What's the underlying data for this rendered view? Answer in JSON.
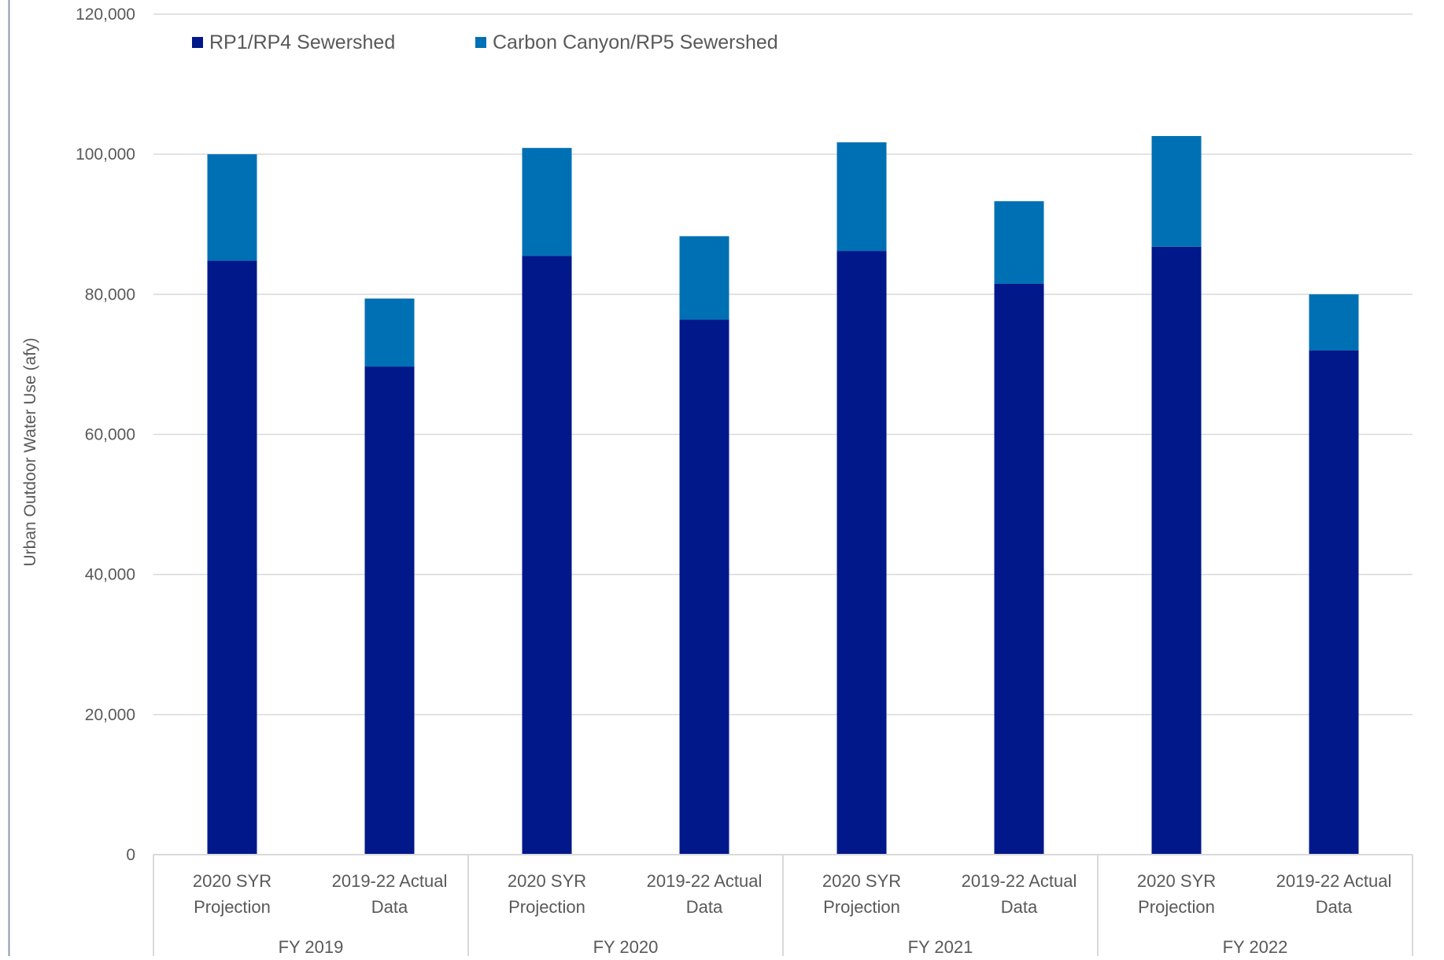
{
  "chart_data": {
    "type": "bar",
    "stacked": true,
    "title": "",
    "ylabel": "Urban Outdoor Water Use (afy)",
    "xlabel": "",
    "ylim": [
      0,
      120000
    ],
    "yticks": [
      0,
      20000,
      40000,
      60000,
      80000,
      100000,
      120000
    ],
    "ytick_labels": [
      "0",
      "20,000",
      "40,000",
      "60,000",
      "80,000",
      "100,000",
      "120,000"
    ],
    "grid": true,
    "legend_position": "top-left",
    "groups": [
      "FY 2019",
      "FY 2020",
      "FY 2021",
      "FY 2022"
    ],
    "categories": [
      [
        "2020 SYR",
        "Projection"
      ],
      [
        "2019-22 Actual",
        "Data"
      ],
      [
        "2020 SYR",
        "Projection"
      ],
      [
        "2019-22 Actual",
        "Data"
      ],
      [
        "2020 SYR",
        "Projection"
      ],
      [
        "2019-22 Actual",
        "Data"
      ],
      [
        "2020 SYR",
        "Projection"
      ],
      [
        "2019-22 Actual",
        "Data"
      ]
    ],
    "series": [
      {
        "name": "RP1/RP4 Sewershed",
        "color": "#00188a",
        "values": [
          84800,
          69700,
          85500,
          76400,
          86200,
          81500,
          86800,
          72000
        ]
      },
      {
        "name": "Carbon Canyon/RP5 Sewershed",
        "color": "#0070b4",
        "values": [
          15200,
          9700,
          15400,
          11900,
          15500,
          11800,
          15800,
          8000
        ]
      }
    ]
  }
}
